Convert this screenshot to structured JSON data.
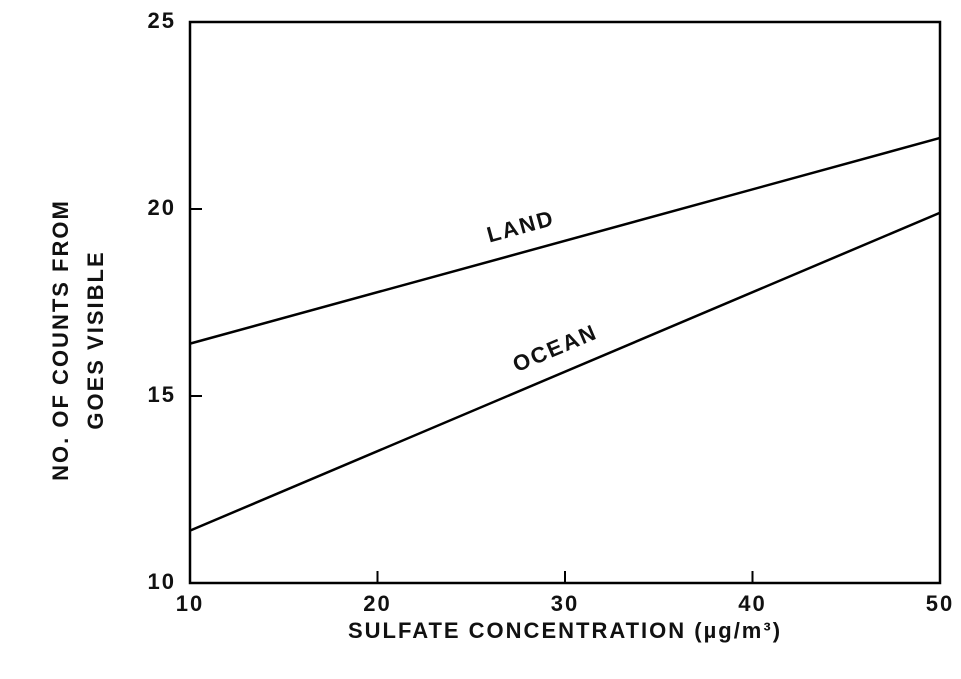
{
  "chart_data": {
    "type": "line",
    "x_label": "SULFATE CONCENTRATION (µg/m³)",
    "y_label": [
      "NO. OF COUNTS FROM",
      "GOES VISIBLE"
    ],
    "x": [
      10,
      50
    ],
    "series": [
      {
        "name": "LAND",
        "color": "#000000",
        "values": [
          16.4,
          21.9
        ]
      },
      {
        "name": "OCEAN",
        "color": "#000000",
        "values": [
          11.4,
          19.9
        ]
      }
    ],
    "xlim": [
      10,
      50
    ],
    "xticks": [
      10,
      20,
      30,
      40,
      50
    ],
    "ylim": [
      10,
      25
    ],
    "yticks": [
      10,
      15,
      20,
      25
    ],
    "grid": false,
    "legend": "inline"
  }
}
